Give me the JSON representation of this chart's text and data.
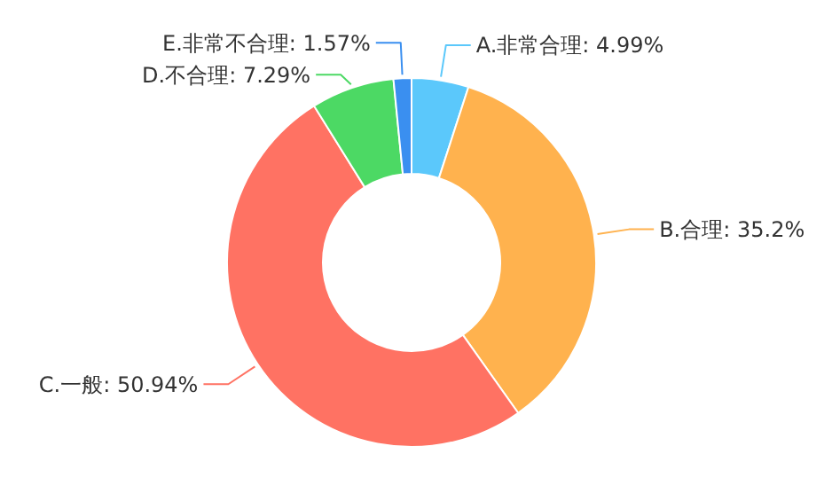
{
  "chart_data": {
    "type": "donut",
    "categories": [
      "A.非常合理",
      "B.合理",
      "C.一般",
      "D.不合理",
      "E.非常不合理"
    ],
    "values": [
      4.99,
      35.2,
      50.94,
      7.29,
      1.57
    ],
    "value_labels": [
      "4.99%",
      "35.2%",
      "50.94%",
      "7.29%",
      "1.57%"
    ],
    "colors": [
      "#5bc8fb",
      "#ffb24e",
      "#ff7263",
      "#4cd964",
      "#3a8ff0"
    ]
  }
}
